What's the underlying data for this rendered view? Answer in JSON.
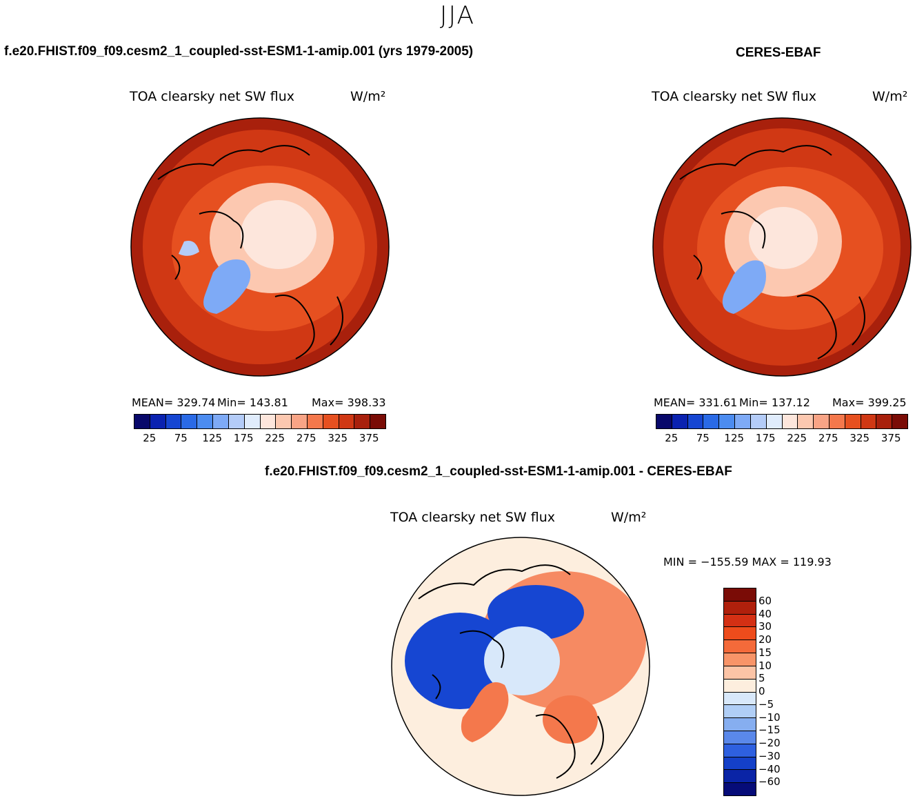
{
  "season": "JJA",
  "panels": {
    "model": {
      "case_title": "f.e20.FHIST.f09_f09.cesm2_1_coupled-sst-ESM1-1-amip.001 (yrs 1979-2005)",
      "variable": "TOA clearsky net SW flux",
      "units": "W/m²",
      "stats": {
        "mean": "MEAN= 329.74",
        "min": "Min= 143.81",
        "max": "Max= 398.33"
      }
    },
    "obs": {
      "case_title": "CERES-EBAF",
      "variable": "TOA clearsky net SW flux",
      "units": "W/m²",
      "stats": {
        "mean": "MEAN= 331.61",
        "min": "Min= 137.12",
        "max": "Max= 399.25"
      }
    },
    "diff": {
      "case_title": "f.e20.FHIST.f09_f09.cesm2_1_coupled-sst-ESM1-1-amip.001 - CERES-EBAF",
      "variable": "TOA clearsky net SW flux",
      "units": "W/m²",
      "minmax": "MIN = −155.59 MAX = 119.93"
    }
  },
  "colorbar_abs": {
    "colors": [
      "#08086a",
      "#0a22b0",
      "#1646d2",
      "#2a6ae6",
      "#4c8cf0",
      "#7eaaf6",
      "#b4ccf8",
      "#e0ecfc",
      "#fde6dc",
      "#fcc8b0",
      "#f8a486",
      "#f4784c",
      "#e65020",
      "#d03814",
      "#a8200c",
      "#7a0c06"
    ],
    "ticks": [
      "25",
      "75",
      "125",
      "175",
      "225",
      "275",
      "325",
      "375"
    ]
  },
  "colorbar_diff": {
    "colors": [
      "#7a0c06",
      "#b0200c",
      "#d43014",
      "#ee4c1c",
      "#f46a3a",
      "#f89468",
      "#fcc4a6",
      "#fdeede",
      "#d8e8fa",
      "#b0cef6",
      "#86aef0",
      "#5a88ea",
      "#2e60e0",
      "#1440c8",
      "#0a24a6",
      "#060c78"
    ],
    "ticks": [
      "60",
      "40",
      "30",
      "20",
      "15",
      "10",
      "5",
      "0",
      "−5",
      "−10",
      "−15",
      "−20",
      "−30",
      "−40",
      "−60"
    ]
  },
  "map_colors": {
    "ocean_high": "#a8200c",
    "ocean_mid": "#d03814",
    "mid_lat": "#e65020",
    "arctic": "#fcc8b0",
    "pole": "#fde6dc",
    "greenland": "#7eaaf6",
    "greenland_edge": "#b4ccf8",
    "diff_pos": "#f4784c",
    "diff_neg": "#1646d2",
    "diff_neutral": "#fdeede",
    "diff_light_neg": "#d8e8fa"
  }
}
